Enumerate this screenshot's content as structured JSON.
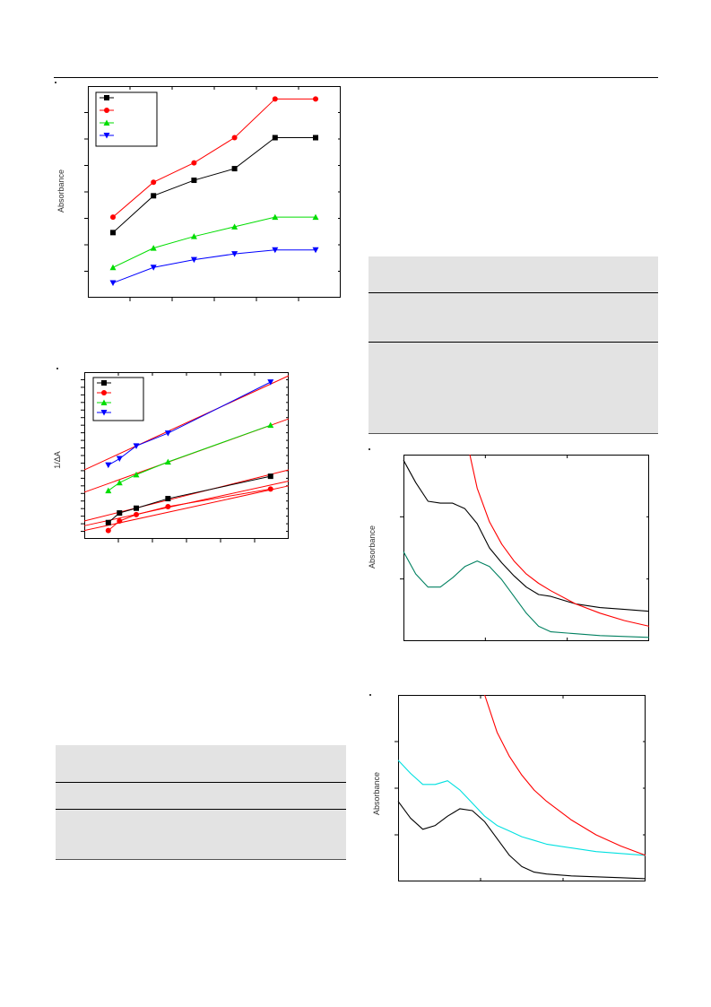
{
  "figures": [
    {
      "id": "fig1",
      "ylabel": "Absorbance"
    },
    {
      "id": "fig2",
      "ylabel": "1/ΔA"
    },
    {
      "id": "fig3",
      "ylabel": "Absorbance"
    },
    {
      "id": "fig4",
      "ylabel": "Absorbance"
    }
  ],
  "chart_data": [
    {
      "type": "line",
      "ylabel": "Absorbance",
      "x": [
        1,
        2,
        3,
        4,
        5,
        6
      ],
      "ylim": [
        0,
        1
      ],
      "series": [
        {
          "values": [
            0.29,
            0.48,
            0.56,
            0.62,
            0.78,
            0.78
          ],
          "color": "#000000",
          "marker": "square"
        },
        {
          "values": [
            0.37,
            0.55,
            0.65,
            0.78,
            0.98,
            0.98
          ],
          "color": "#ff0000",
          "marker": "circle"
        },
        {
          "values": [
            0.11,
            0.21,
            0.27,
            0.32,
            0.37,
            0.37
          ],
          "color": "#00dd00",
          "marker": "triangle-up"
        },
        {
          "values": [
            0.03,
            0.11,
            0.15,
            0.18,
            0.2,
            0.2
          ],
          "color": "#0000ff",
          "marker": "triangle-down"
        }
      ]
    },
    {
      "type": "scatter",
      "ylabel": "1/ΔA",
      "ylim": [
        0,
        1
      ],
      "xlim": [
        0,
        1
      ],
      "series": [
        {
          "x": [
            0.1,
            0.16,
            0.25,
            0.42,
            0.97
          ],
          "values": [
            0.08,
            0.14,
            0.17,
            0.23,
            0.37
          ],
          "color": "#000000",
          "marker": "square"
        },
        {
          "x": [
            0.1,
            0.16,
            0.25,
            0.42,
            0.97
          ],
          "values": [
            0.03,
            0.09,
            0.13,
            0.18,
            0.29
          ],
          "color": "#ff0000",
          "marker": "circle"
        },
        {
          "x": [
            0.1,
            0.16,
            0.25,
            0.42,
            0.97
          ],
          "values": [
            0.28,
            0.33,
            0.38,
            0.46,
            0.69
          ],
          "color": "#00dd00",
          "marker": "triangle-up"
        },
        {
          "x": [
            0.1,
            0.16,
            0.25,
            0.42,
            0.97
          ],
          "values": [
            0.44,
            0.48,
            0.56,
            0.64,
            0.96
          ],
          "color": "#0000ff",
          "marker": "triangle-down"
        }
      ],
      "fit_lines": [
        {
          "from": [
            0.0,
            0.09
          ],
          "to": [
            1.0,
            0.41
          ],
          "color": "#ff0000"
        },
        {
          "from": [
            0.0,
            0.03
          ],
          "to": [
            1.0,
            0.31
          ],
          "color": "#ff0000"
        },
        {
          "from": [
            0.0,
            0.06
          ],
          "to": [
            1.0,
            0.34
          ],
          "color": "#ff0000"
        },
        {
          "from": [
            0.0,
            0.27
          ],
          "to": [
            1.0,
            0.73
          ],
          "color": "#ff0000"
        },
        {
          "from": [
            0.0,
            0.41
          ],
          "to": [
            1.0,
            1.0
          ],
          "color": "#ff0000"
        }
      ]
    },
    {
      "type": "line",
      "ylabel": "Absorbance",
      "xlim": [
        0,
        1
      ],
      "ylim": [
        0,
        1
      ],
      "series": [
        {
          "x": [
            0.0,
            0.05,
            0.1,
            0.15,
            0.2,
            0.25,
            0.3,
            0.35,
            0.4,
            0.45,
            0.5,
            0.55,
            0.6,
            0.7,
            0.8,
            0.9,
            1.0
          ],
          "values": [
            0.97,
            0.85,
            0.75,
            0.74,
            0.74,
            0.71,
            0.63,
            0.5,
            0.42,
            0.35,
            0.29,
            0.25,
            0.24,
            0.2,
            0.18,
            0.17,
            0.16
          ],
          "color": "#000000"
        },
        {
          "x": [
            0.27,
            0.3,
            0.35,
            0.4,
            0.45,
            0.5,
            0.55,
            0.6,
            0.7,
            0.8,
            0.9,
            1.0
          ],
          "values": [
            1.0,
            0.82,
            0.64,
            0.52,
            0.43,
            0.36,
            0.31,
            0.27,
            0.2,
            0.15,
            0.11,
            0.08
          ],
          "color": "#ff0000"
        },
        {
          "x": [
            0.0,
            0.05,
            0.1,
            0.15,
            0.2,
            0.25,
            0.3,
            0.35,
            0.4,
            0.45,
            0.5,
            0.55,
            0.6,
            0.7,
            0.8,
            0.9,
            1.0
          ],
          "values": [
            0.48,
            0.36,
            0.29,
            0.29,
            0.34,
            0.4,
            0.43,
            0.4,
            0.33,
            0.24,
            0.15,
            0.08,
            0.05,
            0.04,
            0.03,
            0.025,
            0.02
          ],
          "color": "#008060"
        }
      ]
    },
    {
      "type": "line",
      "ylabel": "Absorbance",
      "xlim": [
        0,
        1
      ],
      "ylim": [
        0,
        1
      ],
      "series": [
        {
          "x": [
            0.0,
            0.05,
            0.1,
            0.15,
            0.2,
            0.25,
            0.3,
            0.35,
            0.4,
            0.45,
            0.5,
            0.55,
            0.6,
            0.7,
            0.8,
            0.9,
            1.0
          ],
          "values": [
            0.65,
            0.58,
            0.52,
            0.52,
            0.54,
            0.49,
            0.42,
            0.35,
            0.3,
            0.27,
            0.24,
            0.22,
            0.2,
            0.18,
            0.16,
            0.15,
            0.14
          ],
          "color": "#00e0e0"
        },
        {
          "x": [
            0.35,
            0.4,
            0.45,
            0.5,
            0.55,
            0.6,
            0.7,
            0.8,
            0.9,
            1.0
          ],
          "values": [
            1.0,
            0.8,
            0.67,
            0.57,
            0.49,
            0.43,
            0.33,
            0.25,
            0.19,
            0.14
          ],
          "color": "#ff0000"
        },
        {
          "x": [
            0.0,
            0.05,
            0.1,
            0.15,
            0.2,
            0.25,
            0.3,
            0.35,
            0.4,
            0.45,
            0.5,
            0.55,
            0.6,
            0.7,
            0.8,
            0.9,
            1.0
          ],
          "values": [
            0.43,
            0.34,
            0.28,
            0.3,
            0.35,
            0.39,
            0.38,
            0.32,
            0.23,
            0.14,
            0.08,
            0.05,
            0.04,
            0.03,
            0.025,
            0.02,
            0.015
          ],
          "color": "#000000"
        }
      ]
    }
  ]
}
